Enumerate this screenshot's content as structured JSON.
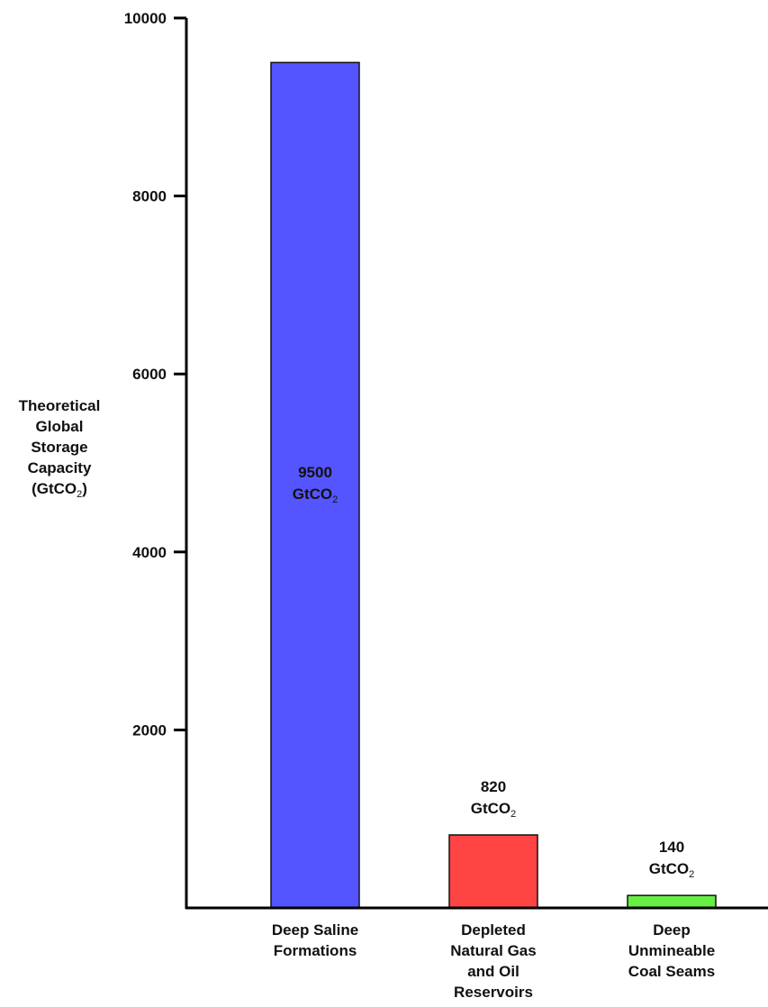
{
  "chart_data": {
    "type": "bar",
    "title": "",
    "ylabel_lines": [
      "Theoretical",
      "Global",
      "Storage",
      "Capacity",
      "(GtCO",
      ")"
    ],
    "ylabel_sub": "2",
    "xlabel": "",
    "ylim": [
      0,
      10000
    ],
    "yticks": [
      2000,
      4000,
      6000,
      8000,
      10000
    ],
    "grid": false,
    "legend": "none",
    "categories": [
      {
        "id": "deep-saline",
        "lines": [
          "Deep Saline",
          "Formations"
        ]
      },
      {
        "id": "depleted-gas-oil",
        "lines": [
          "Depleted",
          "Natural Gas",
          "and Oil",
          "Reservoirs"
        ]
      },
      {
        "id": "coal-seams",
        "lines": [
          "Deep",
          "Unmineable",
          "Coal Seams"
        ]
      }
    ],
    "values": [
      9500,
      820,
      140
    ],
    "value_labels": [
      {
        "number": "9500",
        "unit": "GtCO",
        "sub": "2"
      },
      {
        "number": "820",
        "unit": "GtCO",
        "sub": "2"
      },
      {
        "number": "140",
        "unit": "GtCO",
        "sub": "2"
      }
    ],
    "colors": [
      "#5555ff",
      "#ff4444",
      "#66ee44"
    ]
  }
}
